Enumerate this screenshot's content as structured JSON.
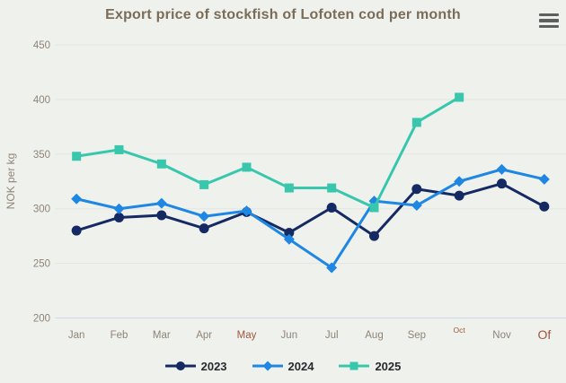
{
  "header": {
    "title": "Export price of stockfish of Lofoten cod per month",
    "menu_icon": "hamburger-menu"
  },
  "colors": {
    "background": "#eff1ed",
    "grid": "#e3e5e1",
    "axis_line": "#ccd6eb",
    "axis_label": "#8d8477",
    "accent_label": "#a0563c",
    "title": "#7b6c58",
    "legend_text": "#252a30"
  },
  "chart_data": {
    "type": "line",
    "title": "Export price of stockfish of Lofoten cod per month",
    "xlabel": "",
    "ylabel": "NOK per kg",
    "ylim": [
      200,
      450
    ],
    "yticks": [
      200,
      250,
      300,
      350,
      400,
      450
    ],
    "grid": true,
    "legend_position": "bottom",
    "categories": [
      {
        "label": "Jan",
        "style": "normal"
      },
      {
        "label": "Feb",
        "style": "normal"
      },
      {
        "label": "Mar",
        "style": "normal"
      },
      {
        "label": "Apr",
        "style": "normal"
      },
      {
        "label": "May",
        "style": "accent"
      },
      {
        "label": "Jun",
        "style": "normal"
      },
      {
        "label": "Jul",
        "style": "normal"
      },
      {
        "label": "Aug",
        "style": "normal"
      },
      {
        "label": "Sep",
        "style": "normal"
      },
      {
        "label": "Oct",
        "style": "accent-small"
      },
      {
        "label": "Nov",
        "style": "normal"
      },
      {
        "label": "Of",
        "style": "accent-large"
      }
    ],
    "series": [
      {
        "name": "2023",
        "color": "#152a63",
        "marker": "circle",
        "values": [
          280,
          292,
          294,
          282,
          297,
          278,
          301,
          275,
          318,
          312,
          323,
          302
        ]
      },
      {
        "name": "2024",
        "color": "#1e87e4",
        "marker": "diamond",
        "values": [
          309,
          300,
          305,
          293,
          298,
          272,
          246,
          307,
          303,
          325,
          336,
          327
        ]
      },
      {
        "name": "2025",
        "color": "#38c7ac",
        "marker": "square",
        "values": [
          348,
          354,
          341,
          322,
          338,
          319,
          319,
          301,
          379,
          402,
          null,
          null
        ]
      }
    ]
  }
}
